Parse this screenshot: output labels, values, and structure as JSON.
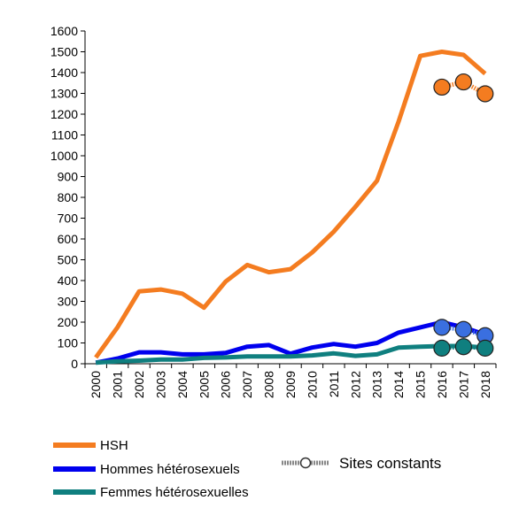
{
  "chart_data": {
    "type": "line",
    "title": "",
    "xlabel": "",
    "ylabel": "",
    "ylim": [
      0,
      1600
    ],
    "yticks": [
      0,
      100,
      200,
      300,
      400,
      500,
      600,
      700,
      800,
      900,
      1000,
      1100,
      1200,
      1300,
      1400,
      1500,
      1600
    ],
    "yticks_labels": [
      "0",
      "100",
      "200",
      "300",
      "400",
      "500",
      "600",
      "700",
      "800",
      "900",
      "1000",
      "1100",
      "1200",
      "1300",
      "1400",
      "1500",
      "1600"
    ],
    "categories": [
      "2000",
      "2001",
      "2002",
      "2003",
      "2004",
      "2005",
      "2006",
      "2007",
      "2008",
      "2009",
      "2010",
      "2011",
      "2012",
      "2013",
      "2014",
      "2015",
      "2016",
      "2017",
      "2018"
    ],
    "grid": false,
    "legend_position": "bottom-left",
    "series": [
      {
        "name": "HSH",
        "color": "#F47C20",
        "values": [
          30,
          175,
          348,
          357,
          337,
          270,
          395,
          475,
          440,
          455,
          535,
          635,
          755,
          880,
          1165,
          1480,
          1500,
          1485,
          1395
        ]
      },
      {
        "name": "Hommes hétérosexuels",
        "color": "#0000EE",
        "values": [
          5,
          25,
          55,
          55,
          45,
          45,
          52,
          82,
          90,
          48,
          78,
          95,
          82,
          100,
          150,
          175,
          200,
          175,
          140
        ]
      },
      {
        "name": "Femmes hétérosexuelles",
        "color": "#0F7F7F",
        "values": [
          5,
          12,
          15,
          20,
          20,
          28,
          30,
          35,
          35,
          35,
          40,
          50,
          38,
          45,
          78,
          82,
          85,
          85,
          78
        ]
      }
    ],
    "constant_sites": {
      "name": "Sites constants",
      "categories": [
        "2016",
        "2017",
        "2018"
      ],
      "series": [
        {
          "color": "#F47C20",
          "values": [
            1330,
            1355,
            1298
          ]
        },
        {
          "color": "#3A6FE0",
          "values": [
            175,
            165,
            135
          ]
        },
        {
          "color": "#0F7F7F",
          "values": [
            75,
            82,
            75
          ]
        }
      ]
    }
  }
}
